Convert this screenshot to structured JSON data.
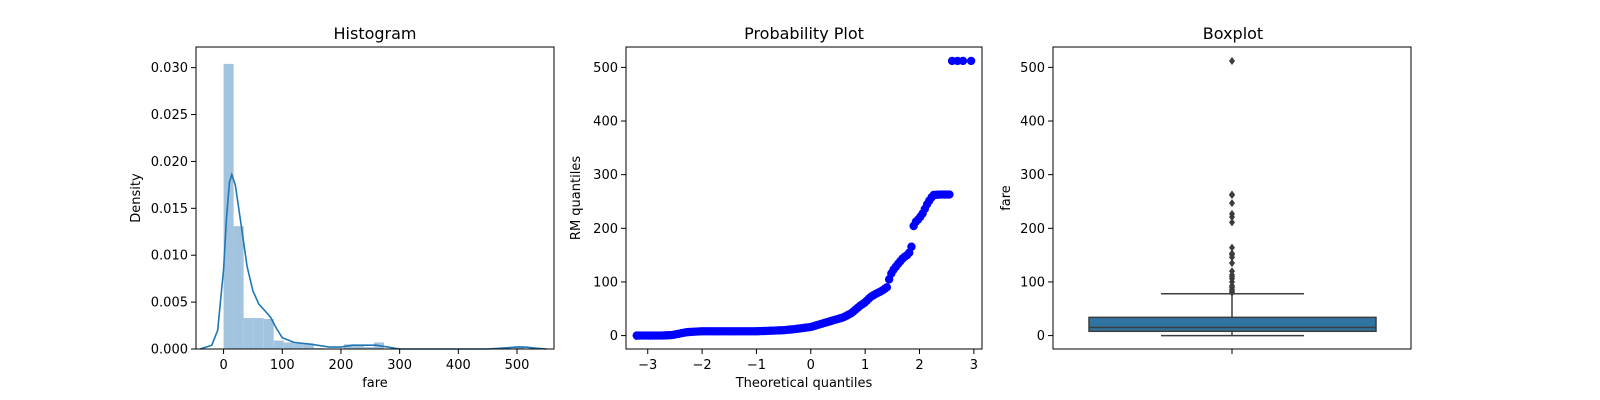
{
  "chart_data": [
    {
      "type": "bar",
      "subtype": "histogram-with-kde",
      "title": "Histogram",
      "xlabel": "fare",
      "ylabel": "Density",
      "xlim": [
        -47,
        563
      ],
      "ylim": [
        0,
        0.0322
      ],
      "xticks": [
        0,
        100,
        200,
        300,
        400,
        500
      ],
      "yticks": [
        0.0,
        0.005,
        0.01,
        0.015,
        0.02,
        0.025,
        0.03
      ],
      "ytick_labels": [
        "0.000",
        "0.005",
        "0.010",
        "0.015",
        "0.020",
        "0.025",
        "0.030"
      ],
      "bar_color": "#a3c4de",
      "line_color": "#1f77b4",
      "bins": [
        {
          "x0": 0,
          "x1": 17.08,
          "value": 0.0304
        },
        {
          "x0": 17.08,
          "x1": 34.16,
          "value": 0.0131
        },
        {
          "x0": 34.16,
          "x1": 51.24,
          "value": 0.0033
        },
        {
          "x0": 51.24,
          "x1": 68.32,
          "value": 0.0033
        },
        {
          "x0": 68.32,
          "x1": 85.4,
          "value": 0.0032
        },
        {
          "x0": 85.4,
          "x1": 102.48,
          "value": 0.0009
        },
        {
          "x0": 102.48,
          "x1": 119.56,
          "value": 0.0007
        },
        {
          "x0": 119.56,
          "x1": 136.64,
          "value": 0.0006
        },
        {
          "x0": 136.64,
          "x1": 153.72,
          "value": 0.0006
        },
        {
          "x0": 153.72,
          "x1": 170.8,
          "value": 0.0001
        },
        {
          "x0": 170.8,
          "x1": 187.88,
          "value": 0.0
        },
        {
          "x0": 187.88,
          "x1": 204.96,
          "value": 0.0
        },
        {
          "x0": 204.96,
          "x1": 222.04,
          "value": 0.0005
        },
        {
          "x0": 222.04,
          "x1": 239.12,
          "value": 0.0004
        },
        {
          "x0": 239.12,
          "x1": 256.2,
          "value": 0.0002
        },
        {
          "x0": 256.2,
          "x1": 273.28,
          "value": 0.0007
        },
        {
          "x0": 273.28,
          "x1": 290.36,
          "value": 0.0
        },
        {
          "x0": 495.0,
          "x1": 512.33,
          "value": 0.0003
        }
      ],
      "kde": {
        "x": [
          -40,
          -20,
          -10,
          0,
          5,
          10,
          14,
          20,
          30,
          40,
          50,
          60,
          70,
          80,
          90,
          100,
          120,
          150,
          180,
          200,
          220,
          240,
          260,
          280,
          300,
          350,
          400,
          450,
          500,
          515,
          530,
          550
        ],
        "y": [
          0.0,
          0.0004,
          0.002,
          0.0085,
          0.014,
          0.0178,
          0.0186,
          0.0175,
          0.0132,
          0.0088,
          0.0062,
          0.0048,
          0.0041,
          0.0034,
          0.0022,
          0.0012,
          0.0007,
          0.0005,
          0.0002,
          0.0002,
          0.0004,
          0.0004,
          0.0004,
          0.0002,
          0.0,
          0.0,
          0.0,
          0.0,
          0.0002,
          0.0002,
          0.0001,
          0.0
        ]
      }
    },
    {
      "type": "scatter",
      "subtype": "probability-plot",
      "title": "Probability Plot",
      "xlabel": "Theoretical quantiles",
      "ylabel": "RM quantiles",
      "xlim": [
        -3.4,
        3.15
      ],
      "ylim": [
        -25,
        538
      ],
      "xticks": [
        -3,
        -2,
        -1,
        0,
        1,
        2,
        3
      ],
      "yticks": [
        0,
        100,
        200,
        300,
        400,
        500
      ],
      "point_color": "#0000ff",
      "curve": {
        "x": [
          -3.2,
          -2.95,
          -2.75,
          -2.55,
          -2.4,
          -2.3,
          -2.2,
          -2.0,
          -1.5,
          -1.0,
          -0.5,
          -0.3,
          0.0,
          0.2,
          0.4,
          0.6,
          0.75,
          0.9,
          1.0,
          1.1,
          1.2,
          1.3,
          1.4,
          1.45,
          1.5,
          1.6,
          1.7,
          1.8,
          1.85,
          1.9,
          1.95,
          2.05,
          2.15,
          2.25,
          2.4,
          2.55
        ],
        "y": [
          0,
          0,
          0,
          1,
          4,
          6,
          7,
          8,
          8,
          8,
          10,
          12,
          16,
          22,
          28,
          34,
          42,
          55,
          62,
          72,
          78,
          83,
          90,
          108,
          120,
          133,
          145,
          152,
          164,
          211,
          213,
          226,
          247,
          262,
          263,
          263
        ]
      },
      "extra_points": [
        {
          "x": -3.2,
          "y": 0
        },
        {
          "x": -2.95,
          "y": 0
        },
        {
          "x": 2.6,
          "y": 512
        },
        {
          "x": 2.7,
          "y": 512
        },
        {
          "x": 2.8,
          "y": 512
        },
        {
          "x": 2.95,
          "y": 512
        }
      ]
    },
    {
      "type": "boxplot",
      "title": "Boxplot",
      "xlabel": "",
      "ylabel": "fare",
      "ylim": [
        -25,
        538
      ],
      "yticks": [
        0,
        100,
        200,
        300,
        400,
        500
      ],
      "box_color": "#3274a1",
      "edge_color": "#3d3d3d",
      "stats": {
        "whisker_low": 0,
        "q1": 8,
        "median": 15,
        "q3": 34,
        "whisker_high": 78
      },
      "outliers": [
        80,
        83,
        86,
        90,
        93,
        100,
        106,
        110,
        113,
        120,
        135,
        146,
        151,
        153,
        164,
        211,
        221,
        227,
        247,
        262,
        263,
        512
      ]
    }
  ]
}
